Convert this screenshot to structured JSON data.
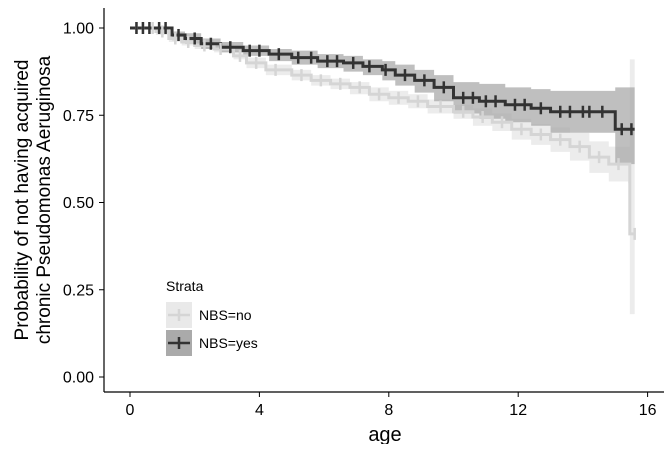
{
  "chart_data": {
    "type": "line",
    "subtype": "kaplan-meier survival curve with confidence bands and censor marks",
    "xlabel": "age",
    "ylabel_line1": "Probability of not having acquired",
    "ylabel_line2": "chronic Pseudomonas Aeruginosa",
    "x_ticks": [
      "0",
      "4",
      "8",
      "12",
      "16"
    ],
    "y_ticks": [
      "0.00",
      "0.25",
      "0.50",
      "0.75",
      "1.00"
    ],
    "xlim": [
      0,
      16
    ],
    "ylim": [
      0,
      1
    ],
    "grid": false,
    "legend": {
      "title": "Strata",
      "placement": "bottom-left inside plot",
      "entries": [
        "NBS=no",
        "NBS=yes"
      ]
    },
    "series": [
      {
        "name": "NBS=no",
        "color": "#d5d5d5",
        "band_color": "#e9e9e9",
        "points": [
          [
            0,
            1.0
          ],
          [
            0.6,
            1.0
          ],
          [
            0.8,
            0.99
          ],
          [
            1.2,
            0.97
          ],
          [
            1.6,
            0.96
          ],
          [
            2.0,
            0.95
          ],
          [
            2.6,
            0.94
          ],
          [
            3.2,
            0.92
          ],
          [
            3.6,
            0.9
          ],
          [
            4.2,
            0.88
          ],
          [
            5.0,
            0.865
          ],
          [
            5.6,
            0.85
          ],
          [
            6.2,
            0.84
          ],
          [
            6.8,
            0.83
          ],
          [
            7.4,
            0.81
          ],
          [
            8.0,
            0.8
          ],
          [
            8.6,
            0.79
          ],
          [
            9.2,
            0.775
          ],
          [
            10.0,
            0.76
          ],
          [
            10.6,
            0.745
          ],
          [
            11.2,
            0.73
          ],
          [
            11.8,
            0.71
          ],
          [
            12.4,
            0.695
          ],
          [
            13.0,
            0.68
          ],
          [
            13.6,
            0.66
          ],
          [
            14.2,
            0.63
          ],
          [
            14.8,
            0.61
          ],
          [
            15.4,
            0.61
          ],
          [
            15.45,
            0.41
          ],
          [
            15.6,
            0.41
          ]
        ],
        "lower": [
          [
            0,
            1.0
          ],
          [
            0.6,
            1.0
          ],
          [
            0.8,
            0.98
          ],
          [
            1.2,
            0.96
          ],
          [
            1.6,
            0.95
          ],
          [
            2.0,
            0.94
          ],
          [
            2.6,
            0.93
          ],
          [
            3.2,
            0.91
          ],
          [
            3.6,
            0.885
          ],
          [
            4.2,
            0.865
          ],
          [
            5.0,
            0.85
          ],
          [
            5.6,
            0.835
          ],
          [
            6.2,
            0.825
          ],
          [
            6.8,
            0.81
          ],
          [
            7.4,
            0.79
          ],
          [
            8.0,
            0.78
          ],
          [
            8.6,
            0.77
          ],
          [
            9.2,
            0.755
          ],
          [
            10.0,
            0.74
          ],
          [
            10.6,
            0.72
          ],
          [
            11.2,
            0.705
          ],
          [
            11.8,
            0.68
          ],
          [
            12.4,
            0.665
          ],
          [
            13.0,
            0.645
          ],
          [
            13.6,
            0.62
          ],
          [
            14.2,
            0.585
          ],
          [
            14.8,
            0.56
          ],
          [
            15.4,
            0.555
          ],
          [
            15.45,
            0.18
          ],
          [
            15.6,
            0.18
          ]
        ],
        "upper": [
          [
            0,
            1.0
          ],
          [
            0.6,
            1.0
          ],
          [
            0.8,
            1.0
          ],
          [
            1.2,
            0.985
          ],
          [
            1.6,
            0.975
          ],
          [
            2.0,
            0.965
          ],
          [
            2.6,
            0.955
          ],
          [
            3.2,
            0.935
          ],
          [
            3.6,
            0.915
          ],
          [
            4.2,
            0.895
          ],
          [
            5.0,
            0.88
          ],
          [
            5.6,
            0.865
          ],
          [
            6.2,
            0.855
          ],
          [
            6.8,
            0.845
          ],
          [
            7.4,
            0.83
          ],
          [
            8.0,
            0.82
          ],
          [
            8.6,
            0.81
          ],
          [
            9.2,
            0.795
          ],
          [
            10.0,
            0.78
          ],
          [
            10.6,
            0.77
          ],
          [
            11.2,
            0.755
          ],
          [
            11.8,
            0.74
          ],
          [
            12.4,
            0.725
          ],
          [
            13.0,
            0.715
          ],
          [
            13.6,
            0.7
          ],
          [
            14.2,
            0.675
          ],
          [
            14.8,
            0.66
          ],
          [
            15.4,
            0.66
          ],
          [
            15.45,
            0.91
          ],
          [
            15.6,
            0.91
          ]
        ],
        "censor_x": [
          0.2,
          0.4,
          0.7,
          1.0,
          1.4,
          1.8,
          2.3,
          2.8,
          3.4,
          3.9,
          4.5,
          5.3,
          5.9,
          6.5,
          7.1,
          7.7,
          8.3,
          8.9,
          9.6,
          10.3,
          10.9,
          11.5,
          12.1,
          12.7,
          13.3,
          13.9,
          14.5,
          15.1,
          15.6
        ]
      },
      {
        "name": "NBS=yes",
        "color": "#333333",
        "band_color": "#aaaaaa",
        "points": [
          [
            0,
            1.0
          ],
          [
            1.2,
            1.0
          ],
          [
            1.3,
            0.98
          ],
          [
            1.7,
            0.97
          ],
          [
            2.2,
            0.955
          ],
          [
            2.8,
            0.945
          ],
          [
            3.5,
            0.935
          ],
          [
            4.3,
            0.925
          ],
          [
            5.0,
            0.915
          ],
          [
            5.8,
            0.905
          ],
          [
            6.6,
            0.9
          ],
          [
            7.2,
            0.89
          ],
          [
            7.8,
            0.88
          ],
          [
            8.2,
            0.865
          ],
          [
            8.8,
            0.85
          ],
          [
            9.4,
            0.83
          ],
          [
            10.0,
            0.8
          ],
          [
            10.8,
            0.79
          ],
          [
            11.6,
            0.78
          ],
          [
            12.4,
            0.77
          ],
          [
            13.0,
            0.76
          ],
          [
            13.8,
            0.76
          ],
          [
            14.4,
            0.76
          ],
          [
            14.9,
            0.76
          ],
          [
            15.0,
            0.71
          ],
          [
            15.6,
            0.71
          ]
        ],
        "lower": [
          [
            0,
            1.0
          ],
          [
            1.2,
            1.0
          ],
          [
            1.3,
            0.965
          ],
          [
            1.7,
            0.955
          ],
          [
            2.2,
            0.94
          ],
          [
            2.8,
            0.93
          ],
          [
            3.5,
            0.92
          ],
          [
            4.3,
            0.905
          ],
          [
            5.0,
            0.895
          ],
          [
            5.8,
            0.885
          ],
          [
            6.6,
            0.875
          ],
          [
            7.2,
            0.865
          ],
          [
            7.8,
            0.85
          ],
          [
            8.2,
            0.835
          ],
          [
            8.8,
            0.815
          ],
          [
            9.4,
            0.79
          ],
          [
            10.0,
            0.755
          ],
          [
            10.8,
            0.74
          ],
          [
            11.6,
            0.73
          ],
          [
            12.4,
            0.72
          ],
          [
            13.0,
            0.7
          ],
          [
            13.8,
            0.7
          ],
          [
            14.4,
            0.7
          ],
          [
            14.9,
            0.7
          ],
          [
            15.0,
            0.61
          ],
          [
            15.6,
            0.61
          ]
        ],
        "upper": [
          [
            0,
            1.0
          ],
          [
            1.2,
            1.0
          ],
          [
            1.3,
            0.99
          ],
          [
            1.7,
            0.985
          ],
          [
            2.2,
            0.97
          ],
          [
            2.8,
            0.96
          ],
          [
            3.5,
            0.95
          ],
          [
            4.3,
            0.94
          ],
          [
            5.0,
            0.935
          ],
          [
            5.8,
            0.925
          ],
          [
            6.6,
            0.92
          ],
          [
            7.2,
            0.91
          ],
          [
            7.8,
            0.905
          ],
          [
            8.2,
            0.895
          ],
          [
            8.8,
            0.88
          ],
          [
            9.4,
            0.865
          ],
          [
            10.0,
            0.845
          ],
          [
            10.8,
            0.84
          ],
          [
            11.6,
            0.83
          ],
          [
            12.4,
            0.825
          ],
          [
            13.0,
            0.82
          ],
          [
            13.8,
            0.82
          ],
          [
            14.4,
            0.82
          ],
          [
            14.9,
            0.82
          ],
          [
            15.0,
            0.83
          ],
          [
            15.6,
            0.83
          ]
        ],
        "censor_x": [
          0.2,
          0.4,
          0.6,
          0.9,
          1.1,
          1.5,
          2.0,
          2.5,
          3.1,
          3.7,
          4.0,
          4.6,
          5.2,
          5.6,
          6.1,
          6.4,
          6.9,
          7.4,
          7.9,
          8.5,
          9.1,
          9.7,
          10.3,
          10.6,
          11.0,
          11.3,
          11.9,
          12.2,
          12.7,
          13.3,
          13.6,
          14.0,
          14.2,
          14.6,
          15.2,
          15.5
        ]
      }
    ]
  }
}
